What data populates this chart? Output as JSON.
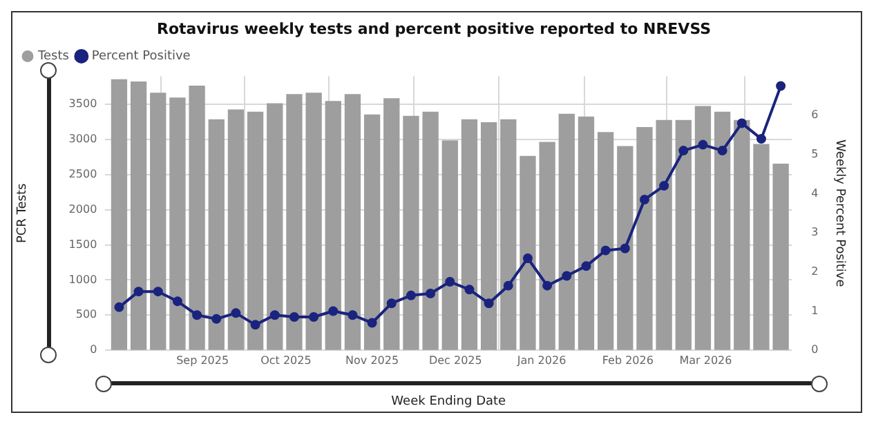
{
  "chart_data": {
    "type": "bar",
    "title": "Rotavirus weekly tests and percent positive reported to NREVSS",
    "xlabel": "Week Ending Date",
    "ylabel": "PCR Tests",
    "y2label": "Weekly Percent Positive",
    "x": [
      "2025-08-02",
      "2025-08-09",
      "2025-08-16",
      "2025-08-23",
      "2025-08-30",
      "2025-09-06",
      "2025-09-13",
      "2025-09-20",
      "2025-09-27",
      "2025-10-04",
      "2025-10-11",
      "2025-10-18",
      "2025-10-25",
      "2025-11-01",
      "2025-11-08",
      "2025-11-15",
      "2025-11-22",
      "2025-11-29",
      "2025-12-06",
      "2025-12-13",
      "2025-12-20",
      "2025-12-27",
      "2026-01-03",
      "2026-01-10",
      "2026-01-17",
      "2026-01-24",
      "2026-01-31",
      "2026-02-07",
      "2026-02-14",
      "2026-02-21",
      "2026-02-28",
      "2026-03-07",
      "2026-03-14",
      "2026-03-21",
      "2026-03-28"
    ],
    "xlim": [
      "2025-07-28",
      "2026-04-01"
    ],
    "xticks": [
      {
        "value": "2025-09-01",
        "label": "Sep 2025"
      },
      {
        "value": "2025-10-01",
        "label": "Oct 2025"
      },
      {
        "value": "2025-11-01",
        "label": "Nov 2025"
      },
      {
        "value": "2025-12-01",
        "label": "Dec 2025"
      },
      {
        "value": "2026-01-01",
        "label": "Jan 2026"
      },
      {
        "value": "2026-02-01",
        "label": "Feb 2026"
      },
      {
        "value": "2026-03-01",
        "label": "Mar 2026"
      }
    ],
    "ylim": [
      0,
      3900
    ],
    "yticks": [
      0,
      500,
      1000,
      1500,
      2000,
      2500,
      3000,
      3500
    ],
    "y2lim": [
      0,
      7
    ],
    "y2ticks": [
      0,
      1,
      2,
      3,
      4,
      5,
      6
    ],
    "grid": true,
    "legend": "top left",
    "marker": "circle",
    "line_style": "solid",
    "series": [
      {
        "name": "Tests",
        "color": "#9e9e9e",
        "values": [
          3850,
          3820,
          3660,
          3590,
          3760,
          3280,
          3420,
          3390,
          3510,
          3640,
          3660,
          3540,
          3640,
          3350,
          3580,
          3330,
          3390,
          2980,
          3280,
          3240,
          3280,
          2760,
          2960,
          3360,
          3320,
          3100,
          2900,
          3170,
          3270,
          3270,
          3470,
          3390,
          3270,
          2930,
          2650
        ]
      },
      {
        "name": "Percent Positive",
        "type": "line",
        "axis": "y2",
        "color": "#1a237e",
        "values": [
          1.1,
          1.5,
          1.5,
          1.25,
          0.9,
          0.8,
          0.95,
          0.65,
          0.9,
          0.85,
          0.85,
          1.0,
          0.9,
          0.7,
          1.2,
          1.4,
          1.45,
          1.75,
          1.55,
          1.2,
          1.65,
          2.35,
          1.65,
          1.9,
          2.15,
          2.55,
          2.6,
          3.85,
          4.2,
          5.1,
          5.25,
          5.1,
          5.8,
          5.4,
          6.75
        ]
      }
    ]
  }
}
